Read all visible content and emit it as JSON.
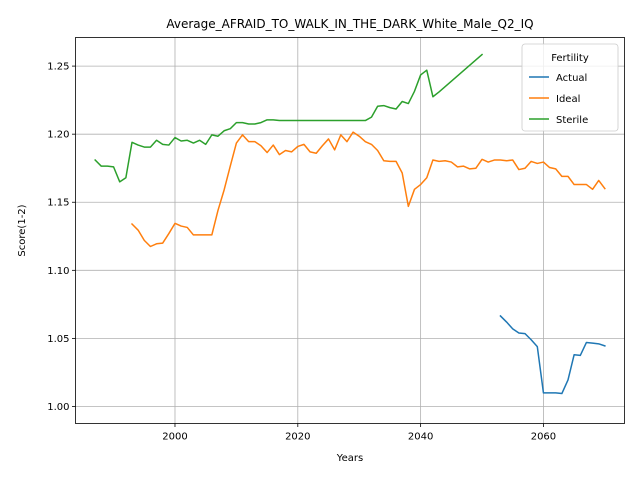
{
  "chart_data": {
    "type": "line",
    "title": "Average_AFRAID_TO_WALK_IN_THE_DARK_White_Male_Q2_IQ",
    "xlabel": "Years",
    "ylabel": "Score(1-2)",
    "xlim": [
      1983.8,
      2073.2
    ],
    "ylim": [
      0.9875,
      1.271
    ],
    "xticks": [
      2000,
      2020,
      2040,
      2060
    ],
    "yticks": [
      1.0,
      1.05,
      1.1,
      1.15,
      1.2,
      1.25
    ],
    "ytick_labels": [
      "1.00",
      "1.05",
      "1.10",
      "1.15",
      "1.20",
      "1.25"
    ],
    "grid": true,
    "legend": {
      "title": "Fertility",
      "placement": "top-right"
    },
    "series": [
      {
        "name": "Actual",
        "color": "#1f77b4",
        "points": [
          [
            2053,
            1.0665
          ],
          [
            2054,
            1.062
          ],
          [
            2055,
            1.057
          ],
          [
            2056,
            1.054
          ],
          [
            2057,
            1.0535
          ],
          [
            2058,
            1.049
          ],
          [
            2059,
            1.044
          ],
          [
            2060,
            1.01
          ],
          [
            2061,
            1.01
          ],
          [
            2062,
            1.01
          ],
          [
            2063,
            1.0095
          ],
          [
            2064,
            1.0195
          ],
          [
            2065,
            1.038
          ],
          [
            2066,
            1.0375
          ],
          [
            2067,
            1.047
          ],
          [
            2068,
            1.0465
          ],
          [
            2069,
            1.046
          ],
          [
            2070,
            1.0445
          ]
        ]
      },
      {
        "name": "Ideal",
        "color": "#ff7f0e",
        "points": [
          [
            1993,
            1.134
          ],
          [
            1994,
            1.1295
          ],
          [
            1995,
            1.122
          ],
          [
            1996,
            1.1175
          ],
          [
            1997,
            1.1195
          ],
          [
            1998,
            1.12
          ],
          [
            1999,
            1.127
          ],
          [
            2000,
            1.1345
          ],
          [
            2001,
            1.1325
          ],
          [
            2002,
            1.1315
          ],
          [
            2003,
            1.126
          ],
          [
            2004,
            1.126
          ],
          [
            2005,
            1.126
          ],
          [
            2006,
            1.126
          ],
          [
            2007,
            1.144
          ],
          [
            2008,
            1.159
          ],
          [
            2009,
            1.1765
          ],
          [
            2010,
            1.1935
          ],
          [
            2011,
            1.1995
          ],
          [
            2012,
            1.1945
          ],
          [
            2013,
            1.1945
          ],
          [
            2014,
            1.1915
          ],
          [
            2015,
            1.1865
          ],
          [
            2016,
            1.192
          ],
          [
            2017,
            1.185
          ],
          [
            2018,
            1.188
          ],
          [
            2019,
            1.187
          ],
          [
            2020,
            1.191
          ],
          [
            2021,
            1.1925
          ],
          [
            2022,
            1.187
          ],
          [
            2023,
            1.186
          ],
          [
            2024,
            1.1915
          ],
          [
            2025,
            1.1965
          ],
          [
            2026,
            1.1885
          ],
          [
            2027,
            1.1995
          ],
          [
            2028,
            1.1945
          ],
          [
            2029,
            1.2015
          ],
          [
            2030,
            1.1985
          ],
          [
            2031,
            1.1945
          ],
          [
            2032,
            1.1925
          ],
          [
            2033,
            1.188
          ],
          [
            2034,
            1.1805
          ],
          [
            2035,
            1.18
          ],
          [
            2036,
            1.18
          ],
          [
            2037,
            1.1715
          ],
          [
            2038,
            1.147
          ],
          [
            2039,
            1.1595
          ],
          [
            2040,
            1.163
          ],
          [
            2041,
            1.168
          ],
          [
            2042,
            1.181
          ],
          [
            2043,
            1.18
          ],
          [
            2044,
            1.1805
          ],
          [
            2045,
            1.1795
          ],
          [
            2046,
            1.176
          ],
          [
            2047,
            1.1765
          ],
          [
            2048,
            1.1745
          ],
          [
            2049,
            1.175
          ],
          [
            2050,
            1.1815
          ],
          [
            2051,
            1.1795
          ],
          [
            2052,
            1.181
          ],
          [
            2053,
            1.181
          ],
          [
            2054,
            1.1805
          ],
          [
            2055,
            1.181
          ],
          [
            2056,
            1.174
          ],
          [
            2057,
            1.175
          ],
          [
            2058,
            1.18
          ],
          [
            2059,
            1.1785
          ],
          [
            2060,
            1.1795
          ],
          [
            2061,
            1.1755
          ],
          [
            2062,
            1.1745
          ],
          [
            2063,
            1.169
          ],
          [
            2064,
            1.169
          ],
          [
            2065,
            1.163
          ],
          [
            2066,
            1.163
          ],
          [
            2067,
            1.163
          ],
          [
            2068,
            1.1595
          ],
          [
            2069,
            1.166
          ],
          [
            2070,
            1.16
          ]
        ]
      },
      {
        "name": "Sterile",
        "color": "#2ca02c",
        "points": [
          [
            1987,
            1.181
          ],
          [
            1988,
            1.1765
          ],
          [
            1989,
            1.1765
          ],
          [
            1990,
            1.176
          ],
          [
            1991,
            1.165
          ],
          [
            1992,
            1.168
          ],
          [
            1993,
            1.194
          ],
          [
            1994,
            1.192
          ],
          [
            1995,
            1.1905
          ],
          [
            1996,
            1.1905
          ],
          [
            1997,
            1.1955
          ],
          [
            1998,
            1.1925
          ],
          [
            1999,
            1.192
          ],
          [
            2000,
            1.1975
          ],
          [
            2001,
            1.195
          ],
          [
            2002,
            1.1955
          ],
          [
            2003,
            1.1935
          ],
          [
            2004,
            1.1955
          ],
          [
            2005,
            1.1925
          ],
          [
            2006,
            1.1995
          ],
          [
            2007,
            1.1985
          ],
          [
            2008,
            1.2025
          ],
          [
            2009,
            1.204
          ],
          [
            2010,
            1.2085
          ],
          [
            2011,
            1.2085
          ],
          [
            2012,
            1.2075
          ],
          [
            2013,
            1.2075
          ],
          [
            2014,
            1.2085
          ],
          [
            2015,
            1.2105
          ],
          [
            2016,
            1.2105
          ],
          [
            2017,
            1.21
          ],
          [
            2018,
            1.21
          ],
          [
            2019,
            1.21
          ],
          [
            2020,
            1.21
          ],
          [
            2021,
            1.21
          ],
          [
            2022,
            1.21
          ],
          [
            2023,
            1.21
          ],
          [
            2024,
            1.21
          ],
          [
            2025,
            1.21
          ],
          [
            2026,
            1.21
          ],
          [
            2027,
            1.21
          ],
          [
            2028,
            1.21
          ],
          [
            2029,
            1.21
          ],
          [
            2030,
            1.21
          ],
          [
            2031,
            1.21
          ],
          [
            2032,
            1.2125
          ],
          [
            2033,
            1.2205
          ],
          [
            2034,
            1.221
          ],
          [
            2035,
            1.2195
          ],
          [
            2036,
            1.2185
          ],
          [
            2037,
            1.224
          ],
          [
            2038,
            1.2225
          ],
          [
            2039,
            1.2315
          ],
          [
            2040,
            1.2435
          ],
          [
            2041,
            1.247
          ],
          [
            2042,
            1.2275
          ],
          [
            2043,
            1.231
          ],
          [
            2050,
            1.2585
          ]
        ]
      }
    ]
  }
}
